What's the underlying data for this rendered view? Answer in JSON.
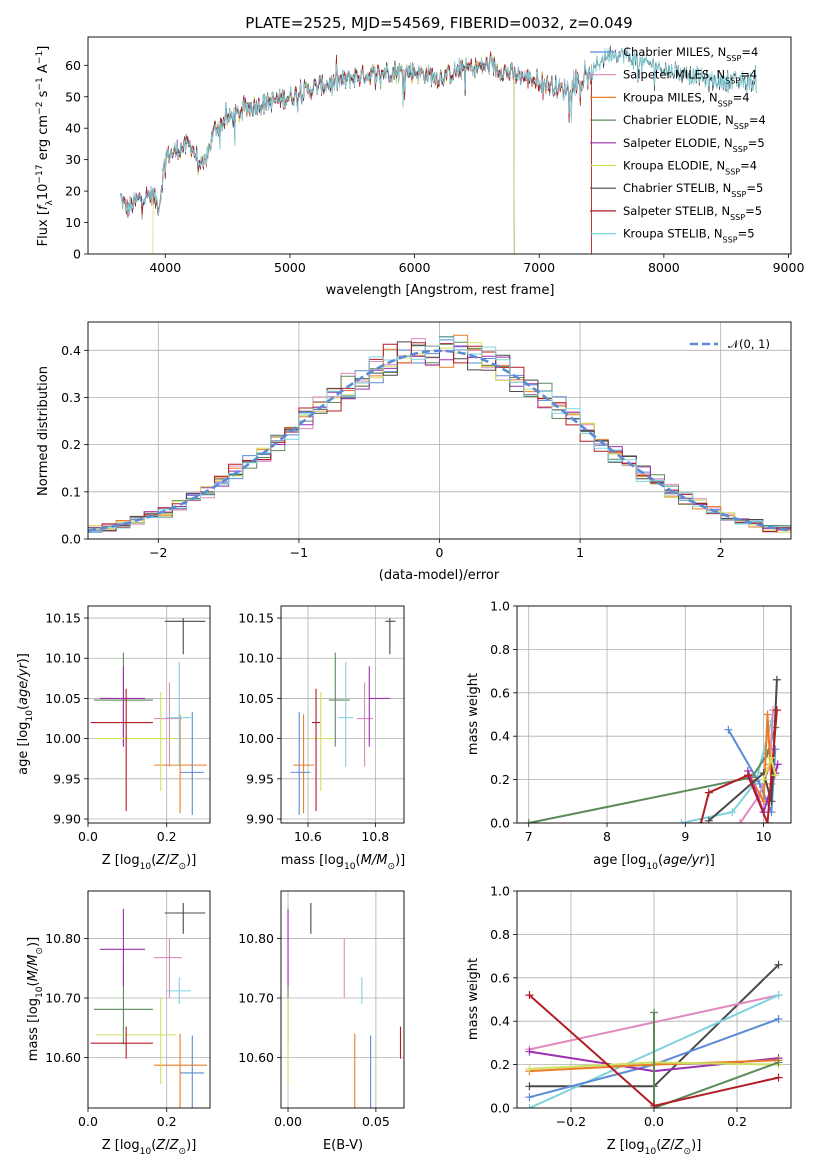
{
  "figure": {
    "title": "PLATE=2525, MJD=54569, FIBERID=0032, z=0.049"
  },
  "colors": {
    "Chabrier MILES": "#5b8bd6",
    "Salpeter MILES": "#e08ac0",
    "Kroupa MILES": "#ea7d24",
    "Chabrier ELODIE": "#5c8a5a",
    "Salpeter ELODIE": "#9b30b0",
    "Kroupa ELODIE": "#cfe060",
    "Chabrier STELIB": "#4a4a4a",
    "Salpeter STELIB": "#b01d25",
    "Kroupa STELIB": "#7fd3de",
    "normal_curve": "#5b8bd6"
  },
  "chart_data": [
    {
      "id": "spectrum",
      "type": "line",
      "title": "PLATE=2525, MJD=54569, FIBERID=0032, z=0.049",
      "xlabel": "wavelength [Angstrom, rest frame]",
      "ylabel": "Flux [f_λ 10^-17 erg cm^-2 s^-1 A^-1]",
      "xlim": [
        3380,
        9020
      ],
      "ylim": [
        0,
        69
      ],
      "xticks": [
        4000,
        5000,
        6000,
        7000,
        8000,
        9000
      ],
      "yticks": [
        0,
        10,
        20,
        30,
        40,
        50,
        60
      ],
      "legend_position": "right",
      "legend": [
        "Chabrier MILES, N_SSP=4",
        "Salpeter MILES, N_SSP=4",
        "Kroupa MILES, N_SSP=4",
        "Chabrier ELODIE, N_SSP=4",
        "Salpeter ELODIE, N_SSP=5",
        "Kroupa ELODIE, N_SSP=4",
        "Chabrier STELIB, N_SSP=5",
        "Salpeter STELIB, N_SSP=5",
        "Kroupa STELIB, N_SSP=5"
      ],
      "continuum": {
        "x": [
          3640,
          3700,
          3800,
          3900,
          3950,
          4000,
          4100,
          4200,
          4300,
          4400,
          4500,
          4700,
          4900,
          5000,
          5200,
          5400,
          5600,
          5800,
          6000,
          6200,
          6400,
          6600,
          6800,
          7000,
          7200,
          7400,
          7500,
          7600,
          7700,
          7800,
          7900,
          8000,
          8200,
          8400,
          8600,
          8750
        ],
        "y": [
          18,
          14,
          18,
          19,
          15,
          31,
          33,
          35,
          27,
          40,
          43,
          47,
          49,
          50,
          53,
          55,
          57,
          58,
          58,
          56,
          59,
          60,
          57,
          55,
          52,
          56,
          62,
          64,
          63,
          61,
          60,
          59,
          57,
          55,
          55,
          54
        ]
      },
      "model_ranges": {
        "Chabrier MILES": [
          3640,
          7420
        ],
        "Salpeter MILES": [
          3640,
          7420
        ],
        "Kroupa MILES": [
          3640,
          7420
        ],
        "Chabrier ELODIE": [
          3640,
          6800
        ],
        "Salpeter ELODIE": [
          3640,
          6800
        ],
        "Kroupa ELODIE": [
          3900,
          6800
        ],
        "Chabrier STELIB": [
          3640,
          8750
        ],
        "Salpeter STELIB": [
          3640,
          7420
        ],
        "Kroupa STELIB": [
          3640,
          8750
        ]
      }
    },
    {
      "id": "residuals",
      "type": "line",
      "xlabel": "(data-model)/error",
      "ylabel": "Normed distribution",
      "xlim": [
        -2.5,
        2.5
      ],
      "ylim": [
        0,
        0.46
      ],
      "xticks": [
        -2,
        -1,
        0,
        1,
        2
      ],
      "yticks": [
        0.0,
        0.1,
        0.2,
        0.3,
        0.4
      ],
      "grid": true,
      "legend_position": "top-right",
      "legend": [
        "N(0,1)"
      ],
      "bin_width": 0.1
    },
    {
      "id": "age_vs_Z",
      "type": "scatter",
      "xlabel": "Z [log10(Z/Z_sun)]",
      "ylabel": "age [log10(age/yr)]",
      "xlim": [
        0.0,
        0.31
      ],
      "ylim": [
        9.895,
        10.165
      ],
      "xticks": [
        0.0,
        0.2
      ],
      "yticks": [
        9.9,
        9.95,
        10.0,
        10.05,
        10.1,
        10.15
      ],
      "grid": true
    },
    {
      "id": "age_vs_mass",
      "type": "scatter",
      "xlabel": "mass [log10(M/M_sun)]",
      "ylabel": "",
      "xlim": [
        10.52,
        10.885
      ],
      "ylim": [
        9.895,
        10.165
      ],
      "xticks": [
        10.6,
        10.8
      ],
      "yticks": [
        9.9,
        9.95,
        10.0,
        10.05,
        10.1,
        10.15
      ],
      "grid": true
    },
    {
      "id": "weight_vs_age",
      "type": "line",
      "xlabel": "age [log10(age/yr)]",
      "ylabel": "mass weight",
      "xlim": [
        6.85,
        10.35
      ],
      "ylim": [
        0,
        1
      ],
      "xticks": [
        7,
        8,
        9,
        10
      ],
      "yticks": [
        0.0,
        0.2,
        0.4,
        0.6,
        0.8,
        1.0
      ],
      "grid": true
    },
    {
      "id": "mass_vs_Z",
      "type": "scatter",
      "xlabel": "Z [log10(Z/Z_sun)]",
      "ylabel": "mass [log10(M/M_sun)]",
      "xlim": [
        0.0,
        0.31
      ],
      "ylim": [
        10.515,
        10.88
      ],
      "xticks": [
        0.0,
        0.2
      ],
      "yticks": [
        10.6,
        10.7,
        10.8
      ],
      "grid": true
    },
    {
      "id": "mass_vs_ebv",
      "type": "scatter",
      "xlabel": "E(B-V)",
      "ylabel": "",
      "xlim": [
        -0.004,
        0.066
      ],
      "ylim": [
        10.515,
        10.88
      ],
      "xticks": [
        0.0,
        0.05
      ],
      "yticks": [
        10.6,
        10.7,
        10.8
      ],
      "grid": true
    },
    {
      "id": "weight_vs_Z",
      "type": "line",
      "xlabel": "Z [log10(Z/Z_sun)]",
      "ylabel": "mass weight",
      "xlim": [
        -0.33,
        0.33
      ],
      "ylim": [
        0,
        1
      ],
      "xticks": [
        -0.2,
        0.0,
        0.2
      ],
      "yticks": [
        0.0,
        0.2,
        0.4,
        0.6,
        0.8,
        1.0
      ],
      "grid": true
    }
  ],
  "fits": [
    {
      "name": "Chabrier MILES",
      "Z": 0.265,
      "age": 9.958,
      "age_err": [
        9.905,
        10.033
      ],
      "Z_err": [
        0.235,
        0.295
      ],
      "mass": 10.574,
      "mass_err": [
        10.512,
        10.637
      ],
      "mass_xerr": [
        10.548,
        10.607
      ],
      "ebv": 0.047
    },
    {
      "name": "Salpeter MILES",
      "Z": 0.207,
      "age": 10.025,
      "age_err": [
        9.965,
        10.07
      ],
      "Z_err": [
        0.168,
        0.238
      ],
      "mass": 10.768,
      "mass_err": [
        10.7,
        10.8
      ],
      "mass_xerr": [
        10.745,
        10.793
      ],
      "ebv": 0.032
    },
    {
      "name": "Kroupa MILES",
      "Z": 0.234,
      "age": 9.967,
      "age_err": [
        9.907,
        10.03
      ],
      "Z_err": [
        0.168,
        0.302
      ],
      "mass": 10.587,
      "mass_err": [
        10.515,
        10.64
      ],
      "mass_xerr": [
        10.556,
        10.618
      ],
      "ebv": 0.038
    },
    {
      "name": "Chabrier ELODIE",
      "Z": 0.09,
      "age": 10.048,
      "age_err": [
        9.99,
        10.107
      ],
      "Z_err": [
        0.015,
        0.165
      ],
      "mass": 10.681,
      "mass_err": [
        10.622,
        10.76
      ],
      "mass_xerr": [
        10.662,
        10.724
      ],
      "ebv": 0.0
    },
    {
      "name": "Salpeter ELODIE",
      "Z": 0.09,
      "age": 10.05,
      "age_err": [
        9.99,
        10.09
      ],
      "Z_err": [
        0.03,
        0.145
      ],
      "mass": 10.782,
      "mass_err": [
        10.72,
        10.85
      ],
      "mass_xerr": [
        10.782,
        10.843
      ],
      "ebv": 0.0
    },
    {
      "name": "Kroupa ELODIE",
      "Z": 0.185,
      "age": 10.0,
      "age_err": [
        9.935,
        10.058
      ],
      "Z_err": [
        0.02,
        0.225
      ],
      "mass": 10.638,
      "mass_err": [
        10.555,
        10.7
      ],
      "mass_xerr": [
        10.602,
        10.673
      ],
      "ebv": 0.0
    },
    {
      "name": "Chabrier STELIB",
      "Z": 0.242,
      "age": 10.146,
      "age_err": [
        10.105,
        10.15
      ],
      "Z_err": [
        0.195,
        0.298
      ],
      "mass": 10.843,
      "mass_err": [
        10.808,
        10.86
      ],
      "mass_xerr": [
        10.83,
        10.86
      ],
      "ebv": 0.013
    },
    {
      "name": "Salpeter STELIB",
      "Z": 0.097,
      "age": 10.02,
      "age_err": [
        9.91,
        10.062
      ],
      "Z_err": [
        0.007,
        0.165
      ],
      "mass": 10.624,
      "mass_err": [
        10.598,
        10.652
      ],
      "mass_xerr": [
        10.612,
        10.636
      ],
      "ebv": 0.064
    },
    {
      "name": "Kroupa STELIB",
      "Z": 0.232,
      "age": 10.026,
      "age_err": [
        9.965,
        10.095
      ],
      "Z_err": [
        0.198,
        0.262
      ],
      "mass": 10.712,
      "mass_err": [
        10.69,
        10.735
      ],
      "mass_xerr": [
        10.69,
        10.735
      ],
      "ebv": 0.042
    }
  ],
  "weights_vs_age": [
    {
      "name": "Kroupa STELIB",
      "ages": [
        8.95,
        9.6,
        9.9,
        10.1
      ],
      "w": [
        0.0,
        0.05,
        0.19,
        0.47
      ]
    },
    {
      "name": "Chabrier MILES",
      "ages": [
        9.55,
        9.95,
        10.1,
        10.15
      ],
      "w": [
        0.43,
        0.18,
        0.05,
        0.34
      ]
    },
    {
      "name": "Chabrier ELODIE",
      "ages": [
        7.0,
        9.85,
        10.05,
        10.15
      ],
      "w": [
        0.0,
        0.21,
        0.32,
        0.44
      ]
    },
    {
      "name": "Salpeter MILES",
      "ages": [
        9.7,
        9.95,
        10.08,
        10.12
      ],
      "w": [
        0.0,
        0.13,
        0.27,
        0.52
      ]
    },
    {
      "name": "Kroupa MILES",
      "ages": [
        9.85,
        10.0,
        10.05,
        10.1
      ],
      "w": [
        0.2,
        0.1,
        0.5,
        0.18
      ]
    },
    {
      "name": "Salpeter ELODIE",
      "ages": [
        9.8,
        10.0,
        10.15,
        10.18
      ],
      "w": [
        0.24,
        0.05,
        0.23,
        0.27
      ]
    },
    {
      "name": "Chabrier STELIB",
      "ages": [
        9.3,
        10.0,
        10.1,
        10.17
      ],
      "w": [
        0.01,
        0.23,
        0.1,
        0.66
      ]
    },
    {
      "name": "Salpeter STELIB",
      "ages": [
        9.2,
        9.3,
        9.8,
        10.05,
        10.17
      ],
      "w": [
        0.0,
        0.14,
        0.22,
        0.0,
        0.52
      ]
    },
    {
      "name": "Kroupa ELODIE",
      "ages": [
        10.0,
        10.1,
        10.15
      ],
      "w": [
        0.2,
        0.3,
        0.22
      ]
    }
  ],
  "weights_vs_Z": [
    {
      "name": "Chabrier STELIB",
      "Z": [
        -0.3,
        0.0,
        0.3
      ],
      "w": [
        0.1,
        0.1,
        0.66
      ]
    },
    {
      "name": "Salpeter MILES",
      "Z": [
        -0.3,
        0.3
      ],
      "w": [
        0.27,
        0.52
      ]
    },
    {
      "name": "Kroupa STELIB",
      "Z": [
        -0.3,
        0.3
      ],
      "w": [
        0.0,
        0.52
      ]
    },
    {
      "name": "Chabrier MILES",
      "Z": [
        -0.3,
        0.0,
        0.3
      ],
      "w": [
        0.05,
        0.2,
        0.41
      ]
    },
    {
      "name": "Salpeter ELODIE",
      "Z": [
        -0.3,
        0.0,
        0.3
      ],
      "w": [
        0.26,
        0.17,
        0.23
      ]
    },
    {
      "name": "Kroupa MILES",
      "Z": [
        -0.3,
        0.0,
        0.3
      ],
      "w": [
        0.17,
        0.2,
        0.22
      ]
    },
    {
      "name": "Kroupa ELODIE",
      "Z": [
        -0.3,
        0.0,
        0.3
      ],
      "w": [
        0.18,
        0.21,
        0.2
      ]
    },
    {
      "name": "Chabrier ELODIE",
      "Z": [
        0.0,
        0.0,
        0.3
      ],
      "w": [
        0.44,
        0.0,
        0.21
      ]
    },
    {
      "name": "Salpeter STELIB",
      "Z": [
        -0.3,
        0.0,
        0.3
      ],
      "w": [
        0.52,
        0.01,
        0.14
      ]
    }
  ]
}
